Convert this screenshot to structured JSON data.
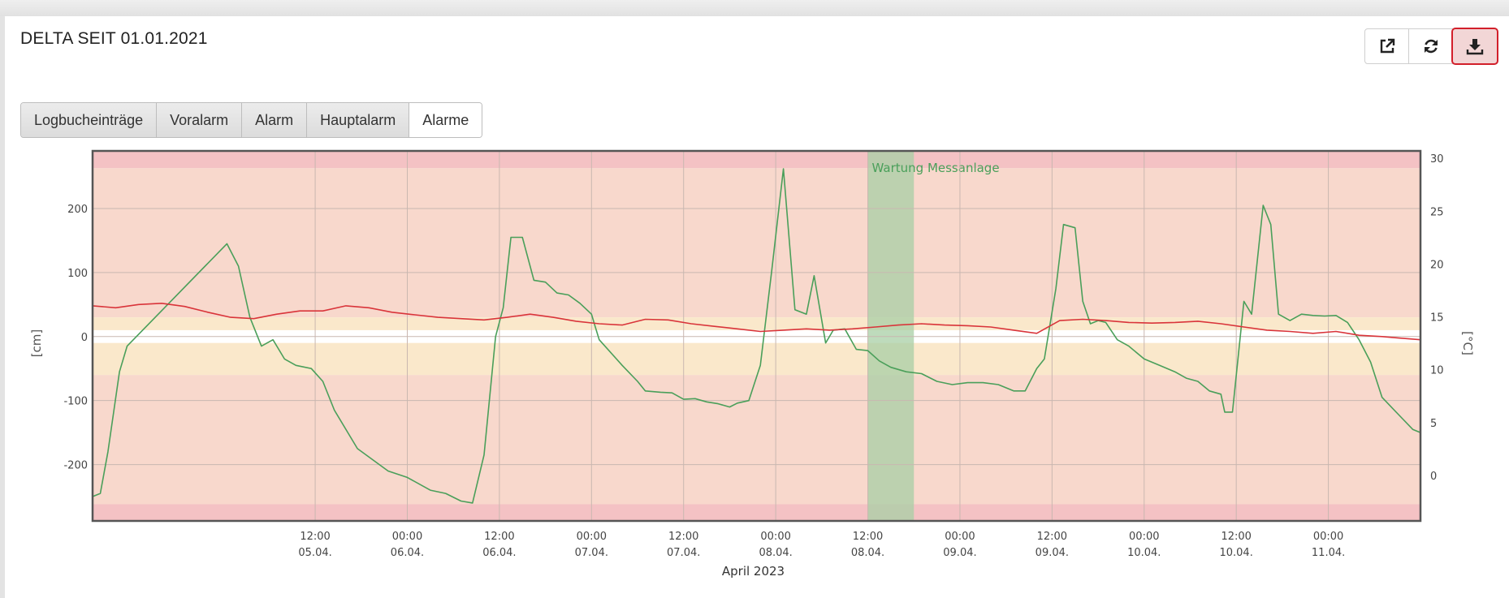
{
  "header": {
    "title": "DELTA SEIT 01.01.2021",
    "tools": [
      {
        "name": "open-external-icon"
      },
      {
        "name": "refresh-icon"
      },
      {
        "name": "download-icon",
        "active": true
      }
    ]
  },
  "filters": {
    "tabs": [
      "Logbucheinträge",
      "Voralarm",
      "Alarm",
      "Hauptalarm",
      "Alarme"
    ]
  },
  "colors": {
    "red_zone": "#f8d8cc",
    "red_band": "#f4c2c4",
    "yellow_zone": "#fae8cb",
    "maintenance": "#a8cfa6",
    "series_green": "#4a9f5a",
    "series_red": "#d9343a",
    "active_outline": "#d21f2a"
  },
  "chart_data": {
    "type": "line",
    "xlabel": "April 2023",
    "ylabel_left": "[cm]",
    "ylabel_right": "[°C]",
    "ylim_left": [
      -288,
      290
    ],
    "ylim_right": [
      -4.3,
      30.7
    ],
    "xlim_hours": "04.04. 07:00 – 11.04. 12:00",
    "grid": true,
    "yticks_left": [
      200,
      100,
      0,
      -100,
      -200
    ],
    "yticks_right": [
      30,
      25,
      20,
      15,
      10,
      5,
      0
    ],
    "xticks": [
      {
        "time": "12:00",
        "date": "05.04."
      },
      {
        "time": "00:00",
        "date": "06.04."
      },
      {
        "time": "12:00",
        "date": "06.04."
      },
      {
        "time": "00:00",
        "date": "07.04."
      },
      {
        "time": "12:00",
        "date": "07.04."
      },
      {
        "time": "00:00",
        "date": "08.04."
      },
      {
        "time": "12:00",
        "date": "08.04."
      },
      {
        "time": "00:00",
        "date": "09.04."
      },
      {
        "time": "12:00",
        "date": "09.04."
      },
      {
        "time": "00:00",
        "date": "10.04."
      },
      {
        "time": "12:00",
        "date": "10.04."
      },
      {
        "time": "00:00",
        "date": "11.04."
      }
    ],
    "bands": [
      {
        "from": 263,
        "to": 290,
        "zone": "red_band"
      },
      {
        "from": 30,
        "to": 263,
        "zone": "red_zone"
      },
      {
        "from": 10,
        "to": 30,
        "zone": "yellow_zone"
      },
      {
        "from": -10,
        "to": -60,
        "zone": "yellow_zone"
      },
      {
        "from": -60,
        "to": -262,
        "zone": "red_zone"
      },
      {
        "from": -262,
        "to": -288,
        "zone": "red_band"
      }
    ],
    "annotations": [
      {
        "label": "Wartung Messanlage",
        "from": "2023-04-08 12:00",
        "to": "2023-04-08 18:00"
      }
    ],
    "series": [
      {
        "axis": "left",
        "color_key": "series_green",
        "points": [
          [
            "2023-04-04 07:00",
            -250
          ],
          [
            "2023-04-04 08:00",
            -245
          ],
          [
            "2023-04-04 09:00",
            -180
          ],
          [
            "2023-04-04 10:30",
            -55
          ],
          [
            "2023-04-04 11:30",
            -15
          ],
          [
            "2023-04-05 00:30",
            145
          ],
          [
            "2023-04-05 02:00",
            110
          ],
          [
            "2023-04-05 03:30",
            30
          ],
          [
            "2023-04-05 05:00",
            -15
          ],
          [
            "2023-04-05 06:30",
            -5
          ],
          [
            "2023-04-05 08:00",
            -35
          ],
          [
            "2023-04-05 09:30",
            -45
          ],
          [
            "2023-04-05 11:30",
            -50
          ],
          [
            "2023-04-05 13:00",
            -70
          ],
          [
            "2023-04-05 14:30",
            -115
          ],
          [
            "2023-04-05 17:30",
            -175
          ],
          [
            "2023-04-05 21:30",
            -210
          ],
          [
            "2023-04-06 00:00",
            -220
          ],
          [
            "2023-04-06 03:00",
            -240
          ],
          [
            "2023-04-06 05:00",
            -245
          ],
          [
            "2023-04-06 07:00",
            -257
          ],
          [
            "2023-04-06 08:30",
            -260
          ],
          [
            "2023-04-06 10:00",
            -185
          ],
          [
            "2023-04-06 11:30",
            0
          ],
          [
            "2023-04-06 12:30",
            45
          ],
          [
            "2023-04-06 13:30",
            155
          ],
          [
            "2023-04-06 15:00",
            155
          ],
          [
            "2023-04-06 16:30",
            88
          ],
          [
            "2023-04-06 18:00",
            85
          ],
          [
            "2023-04-06 19:30",
            68
          ],
          [
            "2023-04-06 21:00",
            65
          ],
          [
            "2023-04-06 22:30",
            52
          ],
          [
            "2023-04-07 00:00",
            35
          ],
          [
            "2023-04-07 00:30",
            15
          ],
          [
            "2023-04-07 01:00",
            -5
          ],
          [
            "2023-04-07 04:00",
            -45
          ],
          [
            "2023-04-07 06:00",
            -70
          ],
          [
            "2023-04-07 07:00",
            -85
          ],
          [
            "2023-04-07 09:00",
            -87
          ],
          [
            "2023-04-07 10:30",
            -88
          ],
          [
            "2023-04-07 12:00",
            -98
          ],
          [
            "2023-04-07 13:30",
            -97
          ],
          [
            "2023-04-07 15:00",
            -102
          ],
          [
            "2023-04-07 16:30",
            -105
          ],
          [
            "2023-04-07 18:00",
            -110
          ],
          [
            "2023-04-07 19:00",
            -104
          ],
          [
            "2023-04-07 20:30",
            -100
          ],
          [
            "2023-04-07 22:00",
            -45
          ],
          [
            "2023-04-07 23:30",
            105
          ],
          [
            "2023-04-08 01:00",
            262
          ],
          [
            "2023-04-08 02:30",
            42
          ],
          [
            "2023-04-08 04:00",
            35
          ],
          [
            "2023-04-08 05:00",
            95
          ],
          [
            "2023-04-08 06:30",
            -10
          ],
          [
            "2023-04-08 07:30",
            10
          ],
          [
            "2023-04-08 09:00",
            12
          ],
          [
            "2023-04-08 10:30",
            -20
          ],
          [
            "2023-04-08 12:00",
            -22
          ],
          [
            "2023-04-08 13:30",
            -38
          ],
          [
            "2023-04-08 15:00",
            -48
          ],
          [
            "2023-04-08 17:00",
            -55
          ],
          [
            "2023-04-08 19:00",
            -58
          ],
          [
            "2023-04-08 21:00",
            -70
          ],
          [
            "2023-04-08 23:00",
            -75
          ],
          [
            "2023-04-09 01:00",
            -72
          ],
          [
            "2023-04-09 03:00",
            -72
          ],
          [
            "2023-04-09 05:00",
            -75
          ],
          [
            "2023-04-09 07:00",
            -85
          ],
          [
            "2023-04-09 08:30",
            -85
          ],
          [
            "2023-04-09 10:00",
            -50
          ],
          [
            "2023-04-09 11:00",
            -35
          ],
          [
            "2023-04-09 12:30",
            75
          ],
          [
            "2023-04-09 13:30",
            175
          ],
          [
            "2023-04-09 15:00",
            170
          ],
          [
            "2023-04-09 16:00",
            55
          ],
          [
            "2023-04-09 17:00",
            20
          ],
          [
            "2023-04-09 18:00",
            25
          ],
          [
            "2023-04-09 19:00",
            22
          ],
          [
            "2023-04-09 20:30",
            -5
          ],
          [
            "2023-04-09 22:00",
            -15
          ],
          [
            "2023-04-10 00:00",
            -35
          ],
          [
            "2023-04-10 02:00",
            -45
          ],
          [
            "2023-04-10 04:00",
            -55
          ],
          [
            "2023-04-10 05:30",
            -65
          ],
          [
            "2023-04-10 07:00",
            -70
          ],
          [
            "2023-04-10 08:30",
            -85
          ],
          [
            "2023-04-10 10:00",
            -90
          ],
          [
            "2023-04-10 10:30",
            -118
          ],
          [
            "2023-04-10 11:30",
            -118
          ],
          [
            "2023-04-10 13:00",
            55
          ],
          [
            "2023-04-10 14:00",
            35
          ],
          [
            "2023-04-10 15:30",
            205
          ],
          [
            "2023-04-10 16:30",
            175
          ],
          [
            "2023-04-10 17:30",
            35
          ],
          [
            "2023-04-10 19:00",
            25
          ],
          [
            "2023-04-10 20:30",
            35
          ],
          [
            "2023-04-10 22:00",
            33
          ],
          [
            "2023-04-10 23:30",
            32
          ],
          [
            "2023-04-11 01:00",
            33
          ],
          [
            "2023-04-11 02:30",
            22
          ],
          [
            "2023-04-11 04:00",
            -5
          ],
          [
            "2023-04-11 05:30",
            -40
          ],
          [
            "2023-04-11 07:00",
            -95
          ],
          [
            "2023-04-11 09:00",
            -120
          ],
          [
            "2023-04-11 11:00",
            -145
          ],
          [
            "2023-04-11 12:00",
            -150
          ]
        ]
      },
      {
        "axis": "left",
        "color_key": "series_red",
        "points": [
          [
            "2023-04-04 07:00",
            48
          ],
          [
            "2023-04-04 10:00",
            45
          ],
          [
            "2023-04-04 13:00",
            50
          ],
          [
            "2023-04-04 16:00",
            52
          ],
          [
            "2023-04-04 19:00",
            47
          ],
          [
            "2023-04-04 22:00",
            38
          ],
          [
            "2023-04-05 01:00",
            30
          ],
          [
            "2023-04-05 04:00",
            28
          ],
          [
            "2023-04-05 07:00",
            35
          ],
          [
            "2023-04-05 10:00",
            40
          ],
          [
            "2023-04-05 13:00",
            40
          ],
          [
            "2023-04-05 16:00",
            48
          ],
          [
            "2023-04-05 19:00",
            45
          ],
          [
            "2023-04-05 22:00",
            38
          ],
          [
            "2023-04-06 01:00",
            34
          ],
          [
            "2023-04-06 04:00",
            30
          ],
          [
            "2023-04-06 07:00",
            28
          ],
          [
            "2023-04-06 10:00",
            26
          ],
          [
            "2023-04-06 13:00",
            30
          ],
          [
            "2023-04-06 16:00",
            35
          ],
          [
            "2023-04-06 19:00",
            30
          ],
          [
            "2023-04-06 22:00",
            24
          ],
          [
            "2023-04-07 01:00",
            20
          ],
          [
            "2023-04-07 04:00",
            18
          ],
          [
            "2023-04-07 07:00",
            27
          ],
          [
            "2023-04-07 10:00",
            26
          ],
          [
            "2023-04-07 13:00",
            20
          ],
          [
            "2023-04-07 16:00",
            16
          ],
          [
            "2023-04-07 19:00",
            12
          ],
          [
            "2023-04-07 22:00",
            8
          ],
          [
            "2023-04-08 01:00",
            10
          ],
          [
            "2023-04-08 04:00",
            12
          ],
          [
            "2023-04-08 07:00",
            10
          ],
          [
            "2023-04-08 10:00",
            12
          ],
          [
            "2023-04-08 13:00",
            15
          ],
          [
            "2023-04-08 16:00",
            18
          ],
          [
            "2023-04-08 19:00",
            20
          ],
          [
            "2023-04-08 22:00",
            18
          ],
          [
            "2023-04-09 01:00",
            17
          ],
          [
            "2023-04-09 04:00",
            15
          ],
          [
            "2023-04-09 07:00",
            10
          ],
          [
            "2023-04-09 10:00",
            5
          ],
          [
            "2023-04-09 13:00",
            25
          ],
          [
            "2023-04-09 16:00",
            27
          ],
          [
            "2023-04-09 19:00",
            25
          ],
          [
            "2023-04-09 22:00",
            22
          ],
          [
            "2023-04-10 01:00",
            21
          ],
          [
            "2023-04-10 04:00",
            22
          ],
          [
            "2023-04-10 07:00",
            24
          ],
          [
            "2023-04-10 10:00",
            20
          ],
          [
            "2023-04-10 13:00",
            15
          ],
          [
            "2023-04-10 16:00",
            10
          ],
          [
            "2023-04-10 19:00",
            8
          ],
          [
            "2023-04-10 22:00",
            5
          ],
          [
            "2023-04-11 01:00",
            8
          ],
          [
            "2023-04-11 04:00",
            2
          ],
          [
            "2023-04-11 07:00",
            0
          ],
          [
            "2023-04-11 09:00",
            -2
          ],
          [
            "2023-04-11 12:00",
            -5
          ]
        ]
      }
    ]
  }
}
